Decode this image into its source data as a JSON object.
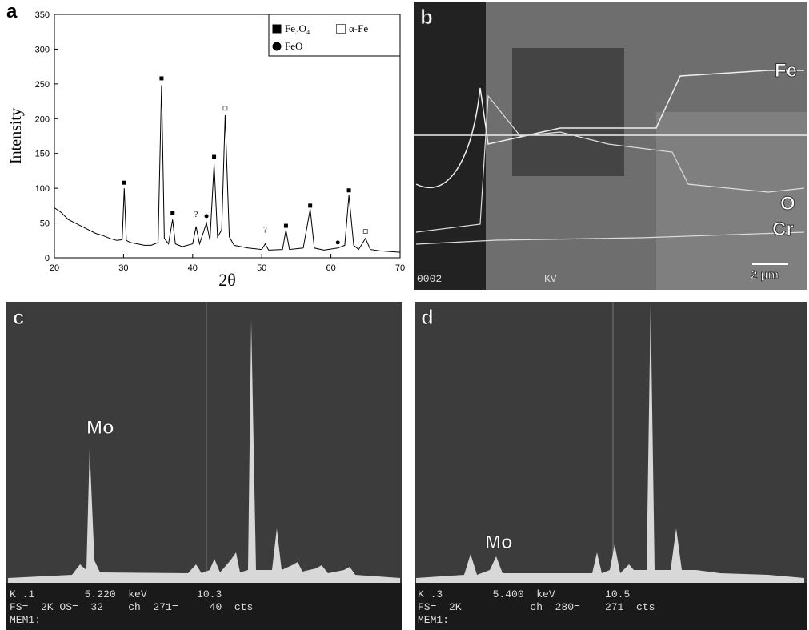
{
  "chart_data": {
    "type": "line",
    "panel_label": "a",
    "xlabel": "2θ",
    "ylabel": "Intensity",
    "x": [
      20,
      21,
      22,
      23,
      24,
      25,
      26,
      27,
      28,
      29,
      29.8,
      30.1,
      30.4,
      31,
      32,
      33,
      34,
      35,
      35.5,
      35.9,
      36.5,
      37.1,
      37.5,
      38.5,
      40,
      40.5,
      41,
      42,
      42.5,
      43.1,
      43.6,
      44.2,
      44.7,
      45.3,
      46,
      48,
      50,
      50.5,
      51,
      53,
      53.5,
      54,
      56,
      57,
      57.6,
      59,
      61,
      62,
      62.6,
      63.3,
      64,
      65,
      65.7,
      67,
      70
    ],
    "values": [
      72,
      65,
      55,
      50,
      45,
      40,
      35,
      32,
      28,
      25,
      26,
      100,
      25,
      22,
      20,
      18,
      18,
      22,
      248,
      28,
      20,
      55,
      20,
      16,
      20,
      45,
      20,
      50,
      25,
      135,
      30,
      40,
      205,
      30,
      18,
      14,
      12,
      20,
      11,
      12,
      40,
      12,
      14,
      70,
      14,
      11,
      14,
      18,
      90,
      18,
      12,
      28,
      12,
      10,
      8
    ],
    "color": "#000000",
    "series": [
      {
        "name": "Fe₃O₄",
        "marker": "filled-square",
        "x": [
          30.1,
          35.5,
          37.1,
          43.1,
          53.5,
          57,
          62.6
        ],
        "values": [
          108,
          258,
          64,
          145,
          46,
          75,
          97
        ]
      },
      {
        "name": "α-Fe",
        "marker": "open-square",
        "x": [
          44.7,
          65
        ],
        "values": [
          215,
          38
        ]
      },
      {
        "name": "FeO",
        "marker": "filled-circle",
        "x": [
          42,
          61
        ],
        "values": [
          60,
          22
        ]
      }
    ],
    "annotations": [
      {
        "text": "?",
        "x": 40.5,
        "y": 59
      },
      {
        "text": "?",
        "x": 50.5,
        "y": 36
      }
    ],
    "xlim": [
      20,
      70
    ],
    "xticks": [
      20,
      30,
      40,
      50,
      60,
      70
    ],
    "ylim": [
      0,
      350
    ],
    "yticks": [
      0,
      50,
      100,
      150,
      200,
      250,
      300,
      350
    ]
  },
  "panels": {
    "b": {
      "label": "b",
      "element_labels": [
        "Fe",
        "O",
        "Cr"
      ],
      "scale_bar": "2 μm",
      "info": "0002",
      "voltage": "KV"
    },
    "c": {
      "label": "c",
      "peak_label": "Mo",
      "status_lines": [
        "K .1        5.220  keV        10.3",
        "FS=  2K OS=  32    ch  271=     40  cts",
        "MEM1:"
      ]
    },
    "d": {
      "label": "d",
      "peak_label": "Mo",
      "status_lines": [
        "K .3        5.400  keV        10.5",
        "FS=  2K           ch  280=    271  cts",
        "MEM1:"
      ]
    }
  }
}
